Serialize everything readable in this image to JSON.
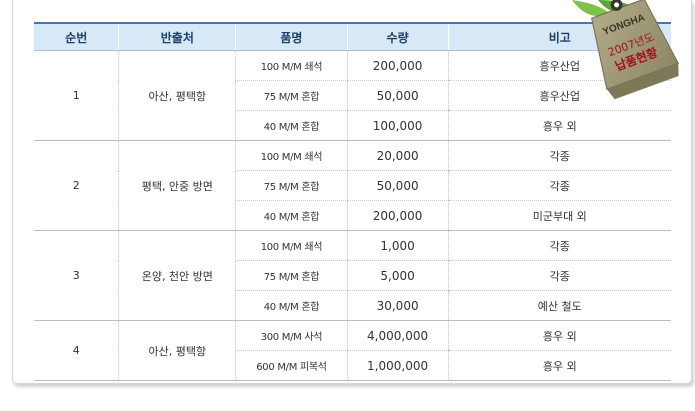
{
  "headers": [
    "순번",
    "반출처",
    "품명",
    "수량",
    "비고"
  ],
  "groups": [
    {
      "no": "1",
      "dest": "아산, 평택항",
      "rows": [
        {
          "item": "100 M/M 쇄석",
          "qty": "200,000",
          "note": "흥우산업"
        },
        {
          "item": "75 M/M  혼합",
          "qty": "50,000",
          "note": "흥우산업"
        },
        {
          "item": "40 M/M  혼합",
          "qty": "100,000",
          "note": "흥우 외"
        }
      ]
    },
    {
      "no": "2",
      "dest": "평택, 안중 방면",
      "rows": [
        {
          "item": "100 M/M 쇄석",
          "qty": "20,000",
          "note": "각종"
        },
        {
          "item": "75 M/M  혼합",
          "qty": "50,000",
          "note": "각종"
        },
        {
          "item": "40 M/M  혼합",
          "qty": "200,000",
          "note": "미군부대 외"
        }
      ]
    },
    {
      "no": "3",
      "dest": "온양, 천안 방면",
      "rows": [
        {
          "item": "100 M/M 쇄석",
          "qty": "1,000",
          "note": "각종"
        },
        {
          "item": "75 M/M  혼합",
          "qty": "5,000",
          "note": "각종"
        },
        {
          "item": "40 M/M  혼합",
          "qty": "30,000",
          "note": "예산 철도"
        }
      ]
    },
    {
      "no": "4",
      "dest": "아산, 평택항",
      "rows": [
        {
          "item": "300 M/M 사석",
          "qty": "4,000,000",
          "note": "흥우 외"
        },
        {
          "item": "600 M/M 피복석",
          "qty": "1,000,000",
          "note": "흥우 외"
        }
      ]
    }
  ],
  "tag": {
    "brand": "YONGHA",
    "year": "2007년도",
    "title": "납품현황"
  },
  "colors": {
    "header_bg": "#d7e9f6",
    "header_text": "#1f3f66",
    "tag_bg": "#9a9473",
    "tag_title": "#a0121c"
  }
}
